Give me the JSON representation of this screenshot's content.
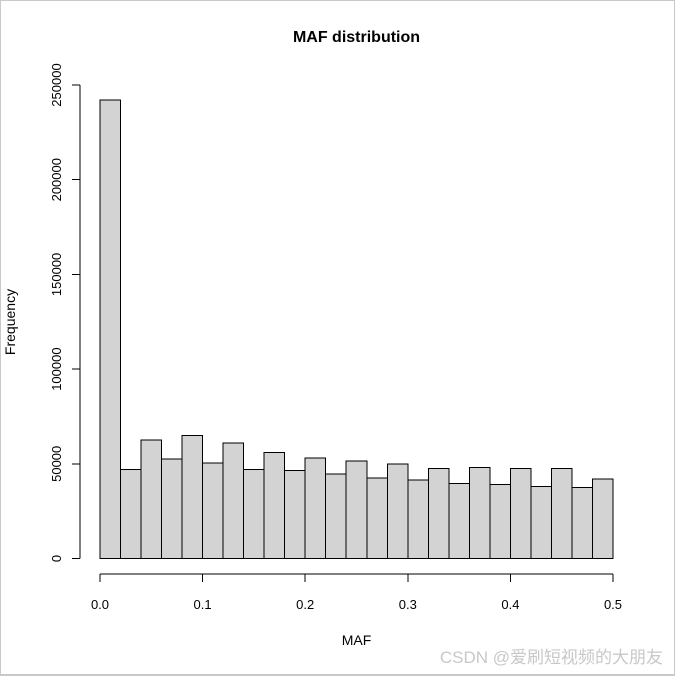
{
  "page": {
    "background": "#ffffff",
    "frame_border_color": "#c9c9c9"
  },
  "chart_data": {
    "type": "bar",
    "subtype": "histogram",
    "title": "MAF distribution",
    "xlabel": "MAF",
    "ylabel": "Frequency",
    "xlim": [
      0.0,
      0.5
    ],
    "ylim": [
      0,
      250000
    ],
    "grid": false,
    "legend": null,
    "bin_width": 0.02,
    "bar_fill": "#d3d3d3",
    "bar_stroke": "#000000",
    "axis_color": "#000000",
    "categories": [
      "0.00-0.02",
      "0.02-0.04",
      "0.04-0.06",
      "0.06-0.08",
      "0.08-0.10",
      "0.10-0.12",
      "0.12-0.14",
      "0.14-0.16",
      "0.16-0.18",
      "0.18-0.20",
      "0.20-0.22",
      "0.22-0.24",
      "0.24-0.26",
      "0.26-0.28",
      "0.28-0.30",
      "0.30-0.32",
      "0.32-0.34",
      "0.34-0.36",
      "0.36-0.38",
      "0.38-0.40",
      "0.40-0.42",
      "0.42-0.44",
      "0.44-0.46",
      "0.46-0.48",
      "0.48-0.50"
    ],
    "values": [
      242000,
      47000,
      62500,
      52500,
      65000,
      50500,
      61000,
      47000,
      56000,
      46500,
      53000,
      44500,
      51500,
      42500,
      50000,
      41500,
      47500,
      39500,
      48000,
      39000,
      47500,
      38000,
      47500,
      37500,
      42000
    ],
    "x_ticks": [
      {
        "value": 0.0,
        "label": "0.0"
      },
      {
        "value": 0.1,
        "label": "0.1"
      },
      {
        "value": 0.2,
        "label": "0.2"
      },
      {
        "value": 0.3,
        "label": "0.3"
      },
      {
        "value": 0.4,
        "label": "0.4"
      },
      {
        "value": 0.5,
        "label": "0.5"
      }
    ],
    "y_ticks": [
      {
        "value": 0,
        "label": "0"
      },
      {
        "value": 50000,
        "label": "50000"
      },
      {
        "value": 100000,
        "label": "100000"
      },
      {
        "value": 150000,
        "label": "150000"
      },
      {
        "value": 200000,
        "label": "200000"
      },
      {
        "value": 250000,
        "label": "250000"
      }
    ]
  },
  "watermark": {
    "text": "CSDN @爱刷短视频的大朋友",
    "color": "#c8c8c8"
  }
}
